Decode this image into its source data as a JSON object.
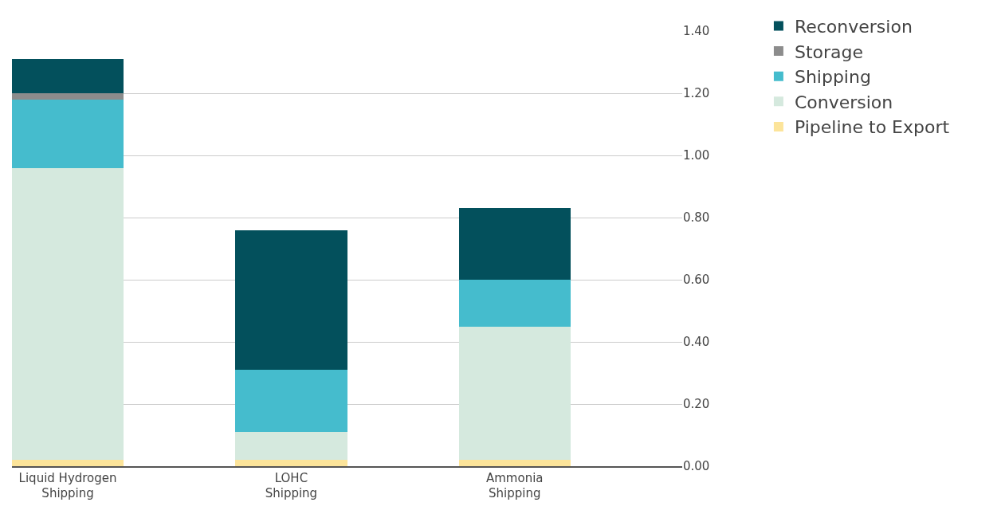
{
  "chart_data": {
    "type": "bar",
    "stacked": true,
    "categories": [
      "Liquid Hydrogen Shipping",
      "LOHC Shipping",
      "Ammonia Shipping"
    ],
    "series": [
      {
        "name": "Pipeline to Export",
        "color": "#fce49a",
        "values": [
          0.02,
          0.02,
          0.02
        ]
      },
      {
        "name": "Conversion",
        "color": "#d5e9de",
        "values": [
          0.94,
          0.09,
          0.43
        ]
      },
      {
        "name": "Shipping",
        "color": "#45bccd",
        "values": [
          0.22,
          0.2,
          0.15
        ]
      },
      {
        "name": "Storage",
        "color": "#8c8c8c",
        "values": [
          0.02,
          0,
          0
        ]
      },
      {
        "name": "Reconversion",
        "color": "#03505c",
        "values": [
          0.11,
          0.45,
          0.23
        ]
      }
    ],
    "ylim": [
      0,
      1.4
    ],
    "yticks": [
      {
        "value": 0,
        "label": "0.00"
      },
      {
        "value": 0.2,
        "label": "0.20"
      },
      {
        "value": 0.4,
        "label": "0.40"
      },
      {
        "value": 0.6,
        "label": "0.60"
      },
      {
        "value": 0.8,
        "label": "0.80"
      },
      {
        "value": 1.0,
        "label": "1.00"
      },
      {
        "value": 1.2,
        "label": "1.20"
      },
      {
        "value": 1.4,
        "label": "1.40"
      }
    ],
    "grid": "y",
    "legend": "top right"
  }
}
